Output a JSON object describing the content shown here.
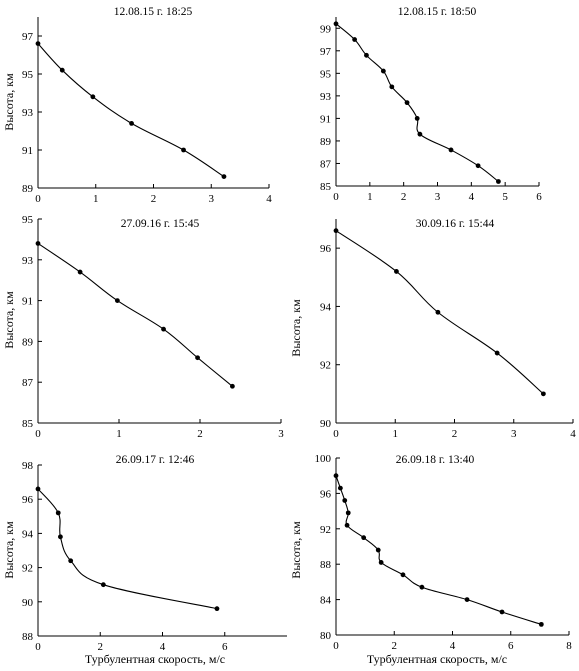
{
  "chart_data": [
    {
      "type": "line",
      "title": "12.08.15 г.  18:25",
      "ylabel": "Высота, км",
      "xlabel": "",
      "xlim": [
        0,
        4
      ],
      "ylim": [
        89,
        98
      ],
      "xticks": [
        0,
        1,
        2,
        3,
        4
      ],
      "yticks": [
        89,
        91,
        93,
        95,
        97
      ],
      "x": [
        0,
        0.42,
        0.95,
        1.62,
        2.52,
        3.22
      ],
      "y": [
        96.6,
        95.2,
        93.8,
        92.4,
        91.0,
        89.6
      ]
    },
    {
      "type": "line",
      "title": "12.08.15 г.  18:50",
      "ylabel": "",
      "xlabel": "",
      "xlim": [
        0,
        6
      ],
      "ylim": [
        85,
        100
      ],
      "xticks": [
        0,
        1,
        2,
        3,
        4,
        5,
        6
      ],
      "yticks": [
        85,
        87,
        89,
        91,
        93,
        95,
        97,
        99
      ],
      "x": [
        0,
        0.55,
        0.9,
        1.4,
        1.65,
        2.1,
        2.4,
        2.48,
        3.4,
        4.2,
        4.8
      ],
      "y": [
        99.4,
        98.0,
        96.6,
        95.2,
        93.8,
        92.4,
        91.0,
        89.6,
        88.2,
        86.8,
        85.4
      ]
    },
    {
      "type": "line",
      "title": "27.09.16 г.  15:45",
      "ylabel": "Высота, км",
      "xlabel": "",
      "xlim": [
        0,
        3
      ],
      "ylim": [
        85,
        95
      ],
      "xticks": [
        0,
        1,
        2,
        3
      ],
      "yticks": [
        85,
        87,
        89,
        91,
        93,
        95
      ],
      "x": [
        0,
        0.52,
        0.98,
        1.55,
        1.97,
        2.4
      ],
      "y": [
        93.8,
        92.4,
        91.0,
        89.6,
        88.2,
        86.8
      ]
    },
    {
      "type": "line",
      "title": "30.09.16 г.  15:44",
      "ylabel": "Высота, км",
      "xlabel": "",
      "xlim": [
        0,
        4
      ],
      "ylim": [
        90,
        97
      ],
      "xticks": [
        0,
        1,
        2,
        3,
        4
      ],
      "yticks": [
        90,
        92,
        94,
        96
      ],
      "x": [
        0,
        1.02,
        1.72,
        2.72,
        3.5
      ],
      "y": [
        96.6,
        95.2,
        93.8,
        92.4,
        91.0
      ]
    },
    {
      "type": "line",
      "title": "26.09.17 г.  12:46",
      "ylabel": "Высота, км",
      "xlabel": "Турбулентная скорость, м/с",
      "xlim": [
        0,
        8
      ],
      "ylim": [
        88,
        98
      ],
      "xticks": [
        0,
        2,
        4,
        6
      ],
      "yticks": [
        88,
        90,
        92,
        94,
        96,
        98
      ],
      "x": [
        0,
        0.65,
        0.72,
        1.05,
        2.1,
        5.75
      ],
      "y": [
        96.6,
        95.2,
        93.8,
        92.4,
        91.0,
        89.6
      ]
    },
    {
      "type": "line",
      "title": "26.09.18 г.  13:40",
      "ylabel": "Высота, км",
      "xlabel": "Турбулентная скорость, м/с",
      "xlim": [
        0,
        8
      ],
      "ylim": [
        80,
        100
      ],
      "xticks": [
        0,
        2,
        4,
        6,
        8
      ],
      "yticks": [
        80,
        84,
        88,
        92,
        96,
        100
      ],
      "x": [
        0,
        0.15,
        0.3,
        0.42,
        0.38,
        0.95,
        1.45,
        1.55,
        2.3,
        2.95,
        4.5,
        5.7,
        7.05
      ],
      "y": [
        98.0,
        96.6,
        95.2,
        93.8,
        92.4,
        91.0,
        89.6,
        88.2,
        86.8,
        85.4,
        84.0,
        82.6,
        81.2
      ]
    }
  ]
}
